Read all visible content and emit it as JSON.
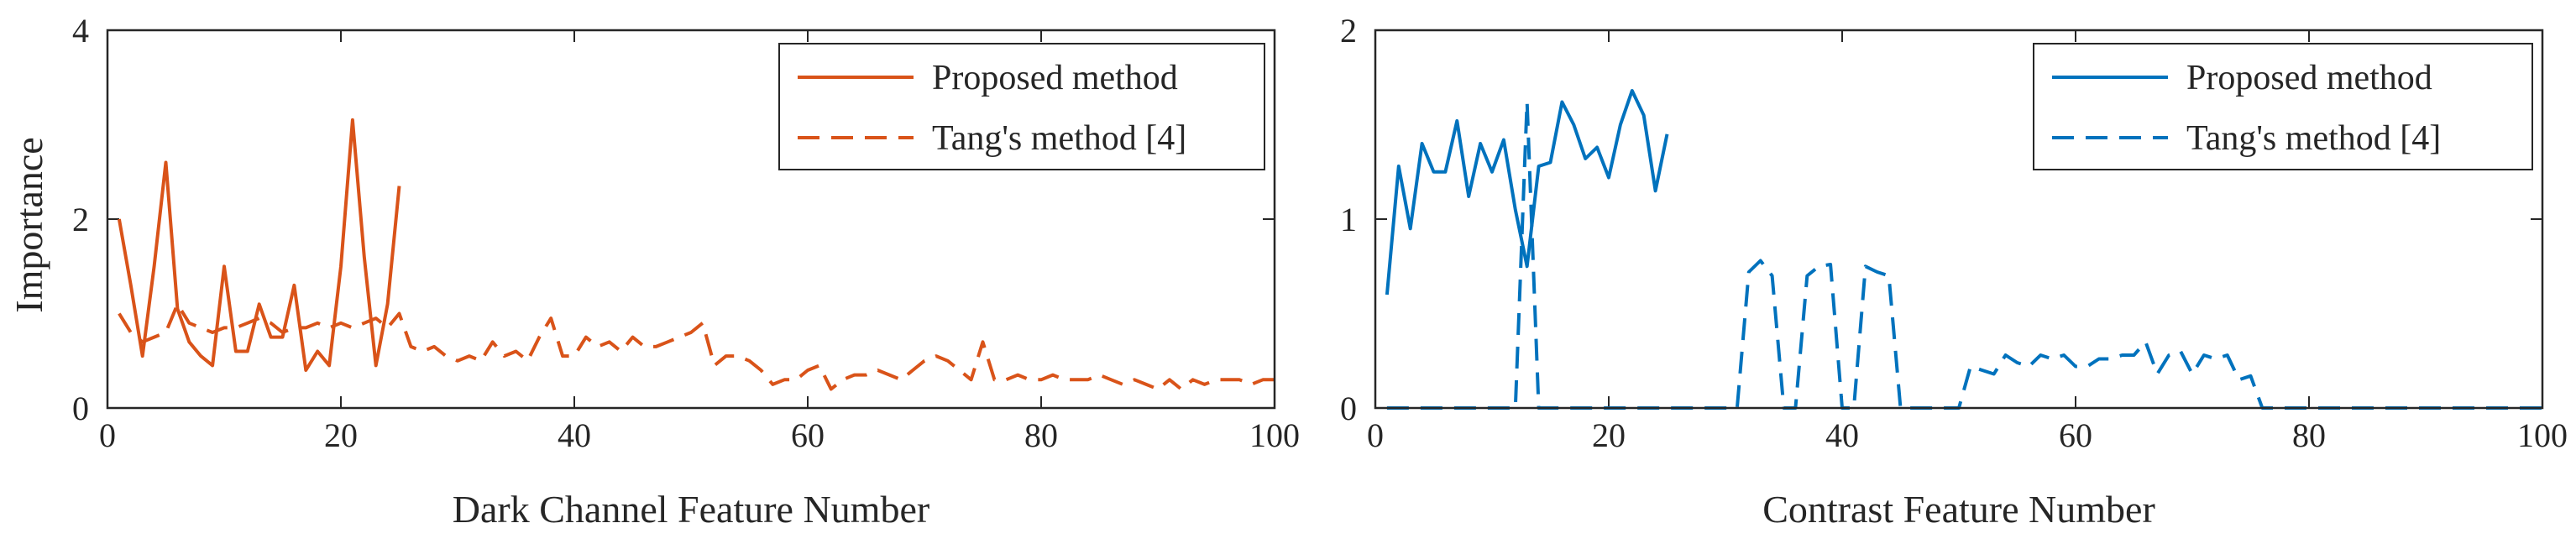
{
  "chart_data": [
    {
      "type": "line",
      "xlabel": "Dark Channel Feature Number",
      "ylabel": "Importance",
      "xlim": [
        0,
        100
      ],
      "ylim": [
        0,
        4
      ],
      "xticks": [
        0,
        20,
        40,
        60,
        80,
        100
      ],
      "yticks": [
        0,
        2,
        4
      ],
      "grid": false,
      "legend_position": "top-right",
      "series": [
        {
          "name": "Proposed method",
          "color": "#D95319",
          "style": "solid",
          "x": [
            1,
            2,
            3,
            4,
            5,
            6,
            7,
            8,
            9,
            10,
            11,
            12,
            13,
            14,
            15,
            16,
            17,
            18,
            19,
            20,
            21,
            22,
            23,
            24,
            25
          ],
          "y": [
            2.0,
            1.3,
            0.55,
            1.5,
            2.6,
            1.05,
            0.7,
            0.55,
            0.45,
            1.5,
            0.6,
            0.6,
            1.1,
            0.75,
            0.75,
            1.3,
            0.4,
            0.6,
            0.45,
            1.5,
            3.05,
            1.6,
            0.45,
            1.1,
            2.35
          ]
        },
        {
          "name": "Tang's method [4]",
          "color": "#D95319",
          "style": "dashed",
          "x": [
            1,
            2,
            3,
            4,
            5,
            6,
            7,
            8,
            9,
            10,
            11,
            12,
            13,
            14,
            15,
            16,
            17,
            18,
            19,
            20,
            21,
            22,
            23,
            24,
            25,
            26,
            27,
            28,
            29,
            30,
            31,
            32,
            33,
            34,
            35,
            36,
            37,
            38,
            39,
            40,
            41,
            42,
            43,
            44,
            45,
            46,
            47,
            48,
            49,
            50,
            51,
            52,
            53,
            54,
            55,
            56,
            57,
            58,
            59,
            60,
            61,
            62,
            63,
            64,
            65,
            66,
            67,
            68,
            69,
            70,
            71,
            72,
            73,
            74,
            75,
            76,
            77,
            78,
            79,
            80,
            81,
            82,
            83,
            84,
            85,
            86,
            87,
            88,
            89,
            90,
            91,
            92,
            93,
            94,
            95,
            96,
            97,
            98,
            99,
            100
          ],
          "y": [
            1.0,
            0.8,
            0.7,
            0.75,
            0.8,
            1.1,
            0.9,
            0.85,
            0.8,
            0.85,
            0.85,
            0.9,
            0.95,
            0.9,
            0.8,
            0.85,
            0.85,
            0.9,
            0.85,
            0.9,
            0.85,
            0.9,
            0.95,
            0.85,
            1.0,
            0.65,
            0.6,
            0.65,
            0.55,
            0.5,
            0.55,
            0.5,
            0.7,
            0.55,
            0.6,
            0.5,
            0.75,
            0.95,
            0.55,
            0.55,
            0.75,
            0.65,
            0.7,
            0.6,
            0.75,
            0.65,
            0.65,
            0.7,
            0.75,
            0.8,
            0.9,
            0.45,
            0.55,
            0.55,
            0.5,
            0.4,
            0.25,
            0.3,
            0.3,
            0.4,
            0.45,
            0.2,
            0.3,
            0.35,
            0.35,
            0.4,
            0.35,
            0.3,
            0.4,
            0.5,
            0.55,
            0.5,
            0.4,
            0.3,
            0.7,
            0.3,
            0.3,
            0.35,
            0.3,
            0.3,
            0.35,
            0.3,
            0.3,
            0.3,
            0.35,
            0.3,
            0.25,
            0.3,
            0.25,
            0.2,
            0.3,
            0.2,
            0.3,
            0.25,
            0.3,
            0.3,
            0.3,
            0.25,
            0.3,
            0.3
          ]
        }
      ]
    },
    {
      "type": "line",
      "xlabel": "Contrast Feature Number",
      "ylabel": "",
      "xlim": [
        0,
        100
      ],
      "ylim": [
        0,
        2
      ],
      "xticks": [
        0,
        20,
        40,
        60,
        80,
        100
      ],
      "yticks": [
        0,
        1,
        2
      ],
      "grid": false,
      "legend_position": "top-right",
      "series": [
        {
          "name": "Proposed method",
          "color": "#0072BD",
          "style": "solid",
          "x": [
            1,
            2,
            3,
            4,
            5,
            6,
            7,
            8,
            9,
            10,
            11,
            12,
            13,
            14,
            15,
            16,
            17,
            18,
            19,
            20,
            21,
            22,
            23,
            24,
            25
          ],
          "y": [
            0.6,
            1.28,
            0.95,
            1.4,
            1.25,
            1.25,
            1.52,
            1.12,
            1.4,
            1.25,
            1.42,
            1.05,
            0.75,
            1.28,
            1.3,
            1.62,
            1.5,
            1.32,
            1.38,
            1.22,
            1.5,
            1.68,
            1.55,
            1.15,
            1.45
          ]
        },
        {
          "name": "Tang's method [4]",
          "color": "#0072BD",
          "style": "dashed",
          "x": [
            1,
            2,
            3,
            4,
            5,
            6,
            7,
            8,
            9,
            10,
            11,
            12,
            13,
            14,
            15,
            16,
            17,
            18,
            19,
            20,
            21,
            22,
            23,
            24,
            25,
            26,
            27,
            28,
            29,
            30,
            31,
            32,
            33,
            34,
            35,
            36,
            37,
            38,
            39,
            40,
            41,
            42,
            43,
            44,
            45,
            46,
            47,
            48,
            49,
            50,
            51,
            52,
            53,
            54,
            55,
            56,
            57,
            58,
            59,
            60,
            61,
            62,
            63,
            64,
            65,
            66,
            67,
            68,
            69,
            70,
            71,
            72,
            73,
            74,
            75,
            76,
            77,
            78,
            79,
            80,
            81,
            82,
            83,
            84,
            85,
            86,
            87,
            88,
            89,
            90,
            91,
            92,
            93,
            94,
            95,
            96,
            97,
            98,
            99,
            100
          ],
          "y": [
            0,
            0,
            0,
            0,
            0,
            0,
            0,
            0,
            0,
            0,
            0,
            0,
            1.62,
            0,
            0,
            0,
            0,
            0,
            0,
            0,
            0,
            0,
            0,
            0,
            0,
            0,
            0,
            0,
            0,
            0,
            0,
            0.72,
            0.78,
            0.7,
            0,
            0,
            0.7,
            0.75,
            0.76,
            0,
            0,
            0.75,
            0.72,
            0.7,
            0,
            0,
            0,
            0,
            0,
            0,
            0.22,
            0.2,
            0.18,
            0.28,
            0.24,
            0.22,
            0.28,
            0.26,
            0.28,
            0.22,
            0.22,
            0.26,
            0.26,
            0.28,
            0.28,
            0.35,
            0.18,
            0.28,
            0.3,
            0.18,
            0.28,
            0.26,
            0.28,
            0.15,
            0.17,
            0,
            0,
            0,
            0,
            0,
            0,
            0,
            0,
            0,
            0,
            0,
            0,
            0,
            0,
            0,
            0,
            0,
            0,
            0,
            0,
            0,
            0,
            0,
            0,
            0
          ]
        }
      ]
    }
  ]
}
